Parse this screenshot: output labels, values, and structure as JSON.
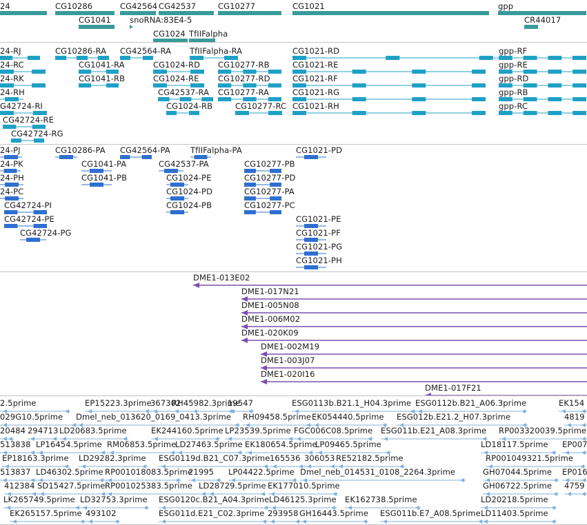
{
  "view": {
    "tracks": [
      {
        "id": "genes",
        "kind": "gene",
        "color": "#3a9a9a",
        "items": [
          {
            "label": "24"
          },
          {
            "label": "CG10286"
          },
          {
            "label": "CG42564"
          },
          {
            "label": "CG42537"
          },
          {
            "label": "CG10277"
          },
          {
            "label": "CG1021"
          },
          {
            "label": "gpp"
          },
          {
            "label": "CG1041"
          },
          {
            "label": "snoRNA:83E4-5"
          },
          {
            "label": "CR44017"
          },
          {
            "label": "CG1024"
          },
          {
            "label": "TfIIFalpha"
          }
        ]
      },
      {
        "id": "transcripts",
        "kind": "mRNA",
        "color": "#1fa0c6",
        "items": [
          {
            "label": "24-RJ"
          },
          {
            "label": "CG10286-RA"
          },
          {
            "label": "CG42564-RA"
          },
          {
            "label": "TfIIFalpha-RA"
          },
          {
            "label": "CG1021-RD"
          },
          {
            "label": "gpp-RF"
          },
          {
            "label": "24-RC"
          },
          {
            "label": "CG1041-RA"
          },
          {
            "label": "CG1024-RD"
          },
          {
            "label": "CG10277-RB"
          },
          {
            "label": "CG1021-RE"
          },
          {
            "label": "gpp-RE"
          },
          {
            "label": "24-RK"
          },
          {
            "label": "CG1041-RB"
          },
          {
            "label": "CG1024-RE"
          },
          {
            "label": "CG10277-RD"
          },
          {
            "label": "CG1021-RF"
          },
          {
            "label": "gpp-RD"
          },
          {
            "label": "24-RH"
          },
          {
            "label": "CG42537-RA"
          },
          {
            "label": "CG10277-RA"
          },
          {
            "label": "CG1021-RG"
          },
          {
            "label": "gpp-RB"
          },
          {
            "label": "CG1024-RB"
          },
          {
            "label": "CG10277-RC"
          },
          {
            "label": "CG1021-RH"
          },
          {
            "label": "gpp-RC"
          },
          {
            "label": "G42724-RI"
          },
          {
            "label": "CG42724-RE"
          },
          {
            "label": "CG42724-RG"
          }
        ]
      },
      {
        "id": "proteins",
        "kind": "CDS",
        "color": "#2f6fd0",
        "items": [
          {
            "label": "24-PJ"
          },
          {
            "label": "CG10286-PA"
          },
          {
            "label": "CG42564-PA"
          },
          {
            "label": "TfIIFalpha-PA"
          },
          {
            "label": "CG1021-PD"
          },
          {
            "label": "24-PK"
          },
          {
            "label": "CG1041-PA"
          },
          {
            "label": "CG42537-PA"
          },
          {
            "label": "CG10277-PB"
          },
          {
            "label": "24-PH"
          },
          {
            "label": "CG1041-PB"
          },
          {
            "label": "CG1024-PE"
          },
          {
            "label": "CG10277-PD"
          },
          {
            "label": "24-PC"
          },
          {
            "label": "CG1024-PD"
          },
          {
            "label": "CG10277-PA"
          },
          {
            "label": "CG42724-PI"
          },
          {
            "label": "CG1024-PB"
          },
          {
            "label": "CG10277-PC"
          },
          {
            "label": "CG42724-PE"
          },
          {
            "label": "CG1021-PE"
          },
          {
            "label": "CG42724-PG"
          },
          {
            "label": "CG1021-PF"
          },
          {
            "label": "CG1021-PG"
          },
          {
            "label": "CG1021-PH"
          }
        ]
      },
      {
        "id": "bac_clones",
        "kind": "clone",
        "color": "#7a4fb0",
        "items": [
          {
            "label": "DME1-013E02"
          },
          {
            "label": "DME1-017N21"
          },
          {
            "label": "DME1-005N08"
          },
          {
            "label": "DME1-006M02"
          },
          {
            "label": "DME1-020K09"
          },
          {
            "label": "DME1-002M19"
          },
          {
            "label": "DME1-003J07"
          },
          {
            "label": "DME1-020I16"
          },
          {
            "label": "DME1-017F21"
          }
        ]
      },
      {
        "id": "est_alignments",
        "kind": "EST",
        "color": "#7fb0dc",
        "items": [
          {
            "label": "2.5prime"
          },
          {
            "label": "EP15223.3prime"
          },
          {
            "label": "367302"
          },
          {
            "label": "RH45982.3prime"
          },
          {
            "label": "19547"
          },
          {
            "label": "ESG0113b.B21.1_H04.3prime"
          },
          {
            "label": "ESG0112b.B21_A06.3prime"
          },
          {
            "label": "EK154"
          },
          {
            "label": "029G10.5prime"
          },
          {
            "label": "Dmel_neb_013620_0169_0413.3prime"
          },
          {
            "label": "RH09458.5prime"
          },
          {
            "label": "EK054440.5prime"
          },
          {
            "label": "ESG012b.E21.2_H07.3prime"
          },
          {
            "label": "4819"
          },
          {
            "label": "20484"
          },
          {
            "label": "294713"
          },
          {
            "label": "LD20683.5prime"
          },
          {
            "label": "EK244160.5prime"
          },
          {
            "label": "LP23539.5prime"
          },
          {
            "label": "FGC006C08.5prime"
          },
          {
            "label": "ESG011b.E21_A08.3prime"
          },
          {
            "label": "RP003320039.5prime"
          },
          {
            "label": "513838"
          },
          {
            "label": "LP16454.5prime"
          },
          {
            "label": "RM06853.5prime"
          },
          {
            "label": "LD27463.5prime"
          },
          {
            "label": "EK180654.5prime"
          },
          {
            "label": "LP09465.5prime"
          },
          {
            "label": "LD18117.5prime"
          },
          {
            "label": "EP007"
          },
          {
            "label": "EP18163.3prime"
          },
          {
            "label": "LD29282.3prime"
          },
          {
            "label": "ESG0119d.B21_C07.3prime"
          },
          {
            "label": "165536"
          },
          {
            "label": "306053"
          },
          {
            "label": "RE52182.5prime"
          },
          {
            "label": "RP001049321.5prime"
          },
          {
            "label": "513837"
          },
          {
            "label": "LD46302.5prime"
          },
          {
            "label": "RP001018083.5prime"
          },
          {
            "label": "21995"
          },
          {
            "label": "LP04422.5prime"
          },
          {
            "label": "Dmel_neb_014531_0108_2264.3prime"
          },
          {
            "label": "GH07044.5prime"
          },
          {
            "label": "EP016"
          },
          {
            "label": "412384"
          },
          {
            "label": "SD15427.5prime"
          },
          {
            "label": "RP001025383.5prime"
          },
          {
            "label": "LD28729.5prime"
          },
          {
            "label": "EK177010.5prime"
          },
          {
            "label": "GH06722.5prime"
          },
          {
            "label": "4759"
          },
          {
            "label": "LK265749.5prime"
          },
          {
            "label": "LD32753.3prime"
          },
          {
            "label": "ESG0120c.B21_A04.3prime"
          },
          {
            "label": "LD46125.3prime"
          },
          {
            "label": "EK162738.5prime"
          },
          {
            "label": "LD20218.5prime"
          },
          {
            "label": "EK265157.5prime"
          },
          {
            "label": "493102"
          },
          {
            "label": "ESG011d.E21_C02.3prime"
          },
          {
            "label": "293958"
          },
          {
            "label": "GH16443.5prime"
          },
          {
            "label": "ESG011b.E7_A08.5prime"
          },
          {
            "label": "LD11403.5prime"
          }
        ]
      }
    ]
  }
}
